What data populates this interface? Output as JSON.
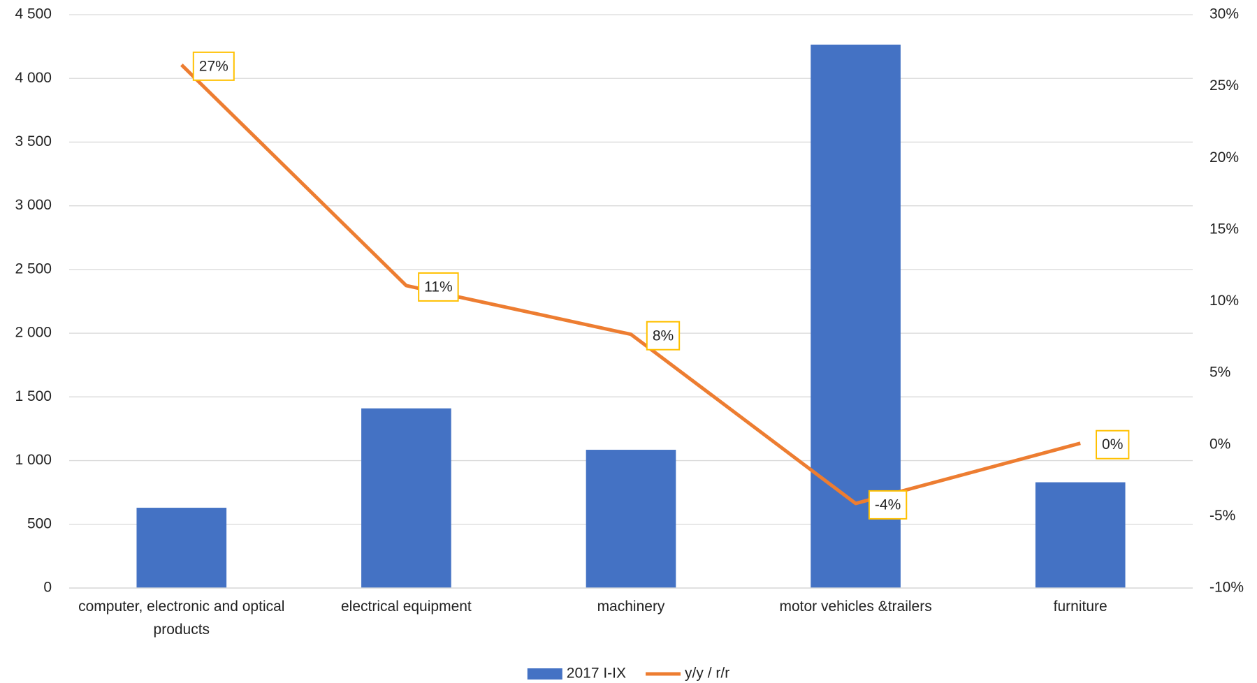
{
  "chart_data": {
    "type": "bar-line",
    "categories": [
      "computer, electronic and optical products",
      "electrical equipment",
      "machinery",
      "motor vehicles &trailers",
      "furniture"
    ],
    "series": [
      {
        "name": "2017 I-IX",
        "type": "bar",
        "color": "#4472C4",
        "values": [
          630,
          1410,
          1085,
          4265,
          830
        ]
      },
      {
        "name": "y/y / r/r",
        "type": "line",
        "axis": "y2",
        "color": "#ED7D31",
        "values": [
          26.5,
          11.1,
          7.7,
          -4.1,
          0.1
        ],
        "value_labels": [
          "27%",
          "11%",
          "8%",
          "-4%",
          "0%"
        ]
      }
    ],
    "ylim": [
      0,
      4500
    ],
    "yticks": [
      0,
      500,
      {
        "value": 1000,
        "label": "1 000"
      },
      {
        "value": 1500,
        "label": "1 500"
      },
      {
        "value": 2000,
        "label": "2 000"
      },
      {
        "value": 2500,
        "label": "2 500"
      },
      {
        "value": 3000,
        "label": "3 000"
      },
      {
        "value": 3500,
        "label": "3 500"
      },
      {
        "value": 4000,
        "label": "4 000"
      },
      {
        "value": 4500,
        "label": "4 500"
      }
    ],
    "y2lim": [
      -10,
      30
    ],
    "y2ticks": [
      {
        "value": -10,
        "label": "-10%"
      },
      {
        "value": -5,
        "label": "-5%"
      },
      {
        "value": 0,
        "label": "0%"
      },
      {
        "value": 5,
        "label": "5%"
      },
      {
        "value": 10,
        "label": "10%"
      },
      {
        "value": 15,
        "label": "15%"
      },
      {
        "value": 20,
        "label": "20%"
      },
      {
        "value": 25,
        "label": "25%"
      },
      {
        "value": 30,
        "label": "30%"
      }
    ],
    "grid": true,
    "legend": "bottom"
  }
}
